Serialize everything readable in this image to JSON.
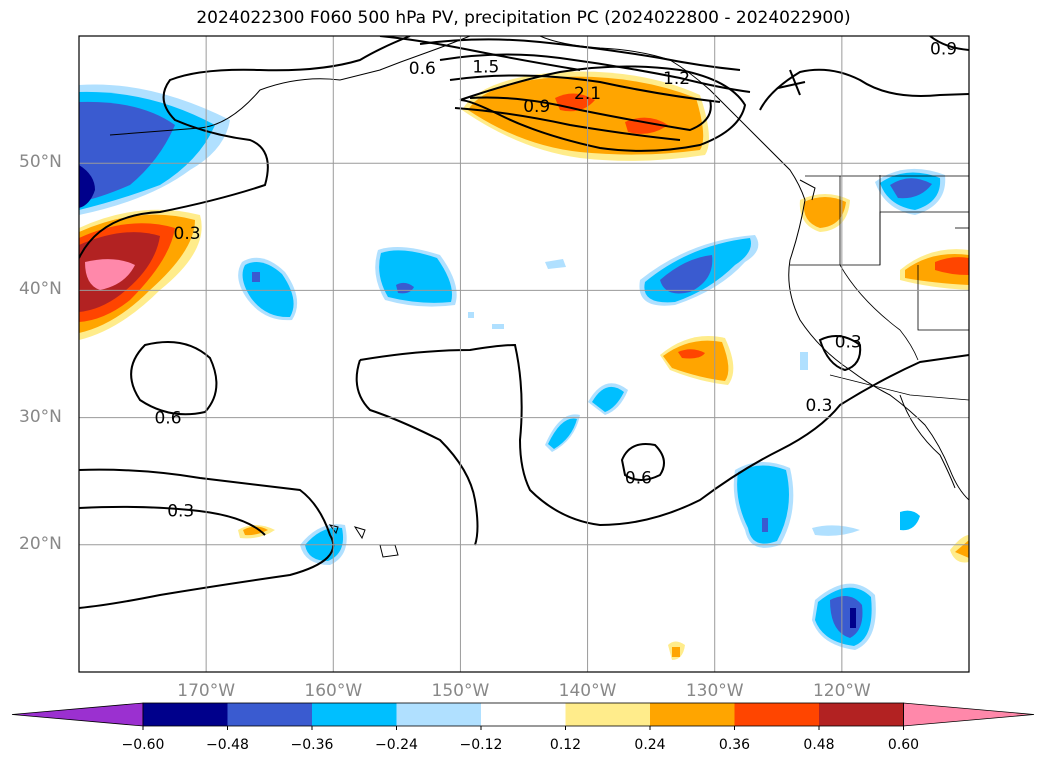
{
  "title": "2024022300 F060 500 hPa PV, precipitation PC (2024022800 - 2024022900)",
  "map": {
    "projection": "equirectangular",
    "extent": {
      "lon_min": -180,
      "lon_max": -110,
      "lat_min": 10,
      "lat_max": 60
    },
    "gridlines": true,
    "lat_ticks": [
      {
        "value": 20,
        "label": "20°N"
      },
      {
        "value": 30,
        "label": "30°N"
      },
      {
        "value": 40,
        "label": "40°N"
      },
      {
        "value": 50,
        "label": "50°N"
      }
    ],
    "lon_ticks": [
      {
        "value": -170,
        "label": "170°W"
      },
      {
        "value": -160,
        "label": "160°W"
      },
      {
        "value": -150,
        "label": "150°W"
      },
      {
        "value": -140,
        "label": "140°W"
      },
      {
        "value": -130,
        "label": "130°W"
      },
      {
        "value": -120,
        "label": "120°W"
      }
    ],
    "pv_contour_labels": [
      {
        "text": "0.6",
        "lon": -173.0,
        "lat": 30.0
      },
      {
        "text": "0.3",
        "lon": -171.5,
        "lat": 44.5
      },
      {
        "text": "0.3",
        "lon": -172.0,
        "lat": 22.7
      },
      {
        "text": "0.6",
        "lon": -136.0,
        "lat": 25.3
      },
      {
        "text": "0.3",
        "lon": -121.8,
        "lat": 31.0
      },
      {
        "text": "0.3",
        "lon": -119.5,
        "lat": 36.0
      },
      {
        "text": "0.6",
        "lon": -153.0,
        "lat": 57.5
      },
      {
        "text": "1.5",
        "lon": -148.0,
        "lat": 57.6
      },
      {
        "text": "0.9",
        "lon": -144.0,
        "lat": 54.5
      },
      {
        "text": "2.1",
        "lon": -140.0,
        "lat": 55.5
      },
      {
        "text": "1.2",
        "lon": -133.0,
        "lat": 56.7
      },
      {
        "text": "0.9",
        "lon": -112.0,
        "lat": 59.0
      }
    ]
  },
  "colorbar": {
    "colors": [
      "#9b30d0",
      "#00008b",
      "#3a5bd0",
      "#00bfff",
      "#b0e0ff",
      "#ffffff",
      "#ffec8b",
      "#ffa500",
      "#ff4500",
      "#b22222",
      "#ff88aa"
    ],
    "ticks": [
      "−0.60",
      "−0.48",
      "−0.36",
      "−0.24",
      "−0.12",
      "0.12",
      "0.24",
      "0.36",
      "0.48",
      "0.60"
    ]
  }
}
